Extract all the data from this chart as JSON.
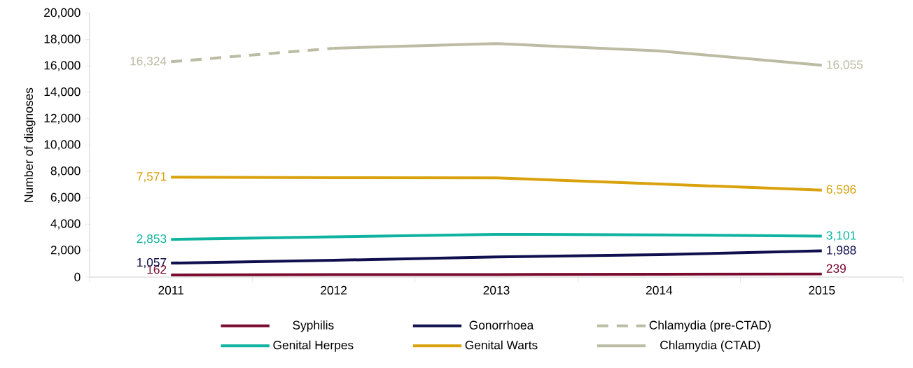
{
  "chart_data": {
    "type": "line",
    "ylabel": "Number of diagnoses",
    "categories": [
      "2011",
      "2012",
      "2013",
      "2014",
      "2015"
    ],
    "ylim": [
      0,
      20000
    ],
    "yticks": [
      {
        "value": 0,
        "label": "0"
      },
      {
        "value": 2000,
        "label": "2,000"
      },
      {
        "value": 4000,
        "label": "4,000"
      },
      {
        "value": 6000,
        "label": "6,000"
      },
      {
        "value": 8000,
        "label": "8,000"
      },
      {
        "value": 10000,
        "label": "10,000"
      },
      {
        "value": 12000,
        "label": "12,000"
      },
      {
        "value": 14000,
        "label": "14,000"
      },
      {
        "value": 16000,
        "label": "16,000"
      },
      {
        "value": 18000,
        "label": "18,000"
      },
      {
        "value": 20000,
        "label": "20,000"
      }
    ],
    "grid": false,
    "legend": "bottom",
    "marker": "none",
    "series": [
      {
        "name": "Syphilis",
        "color": "#7a0a2e",
        "line_style": "solid",
        "values": [
          162,
          180,
          190,
          210,
          239
        ],
        "value_labels": [
          "162",
          null,
          null,
          null,
          "239"
        ]
      },
      {
        "name": "Gonorrhoea",
        "color": "#10104f",
        "line_style": "solid",
        "values": [
          1057,
          1270,
          1530,
          1700,
          1988
        ],
        "value_labels": [
          "1,057",
          null,
          null,
          null,
          "1,988"
        ]
      },
      {
        "name": "Chlamydia (pre-CTAD)",
        "color": "#bcbca4",
        "line_style": "dashed",
        "values": [
          16324,
          17350,
          null,
          null,
          null
        ],
        "value_labels": [
          "16,324",
          null,
          null,
          null,
          null
        ]
      },
      {
        "name": "Genital Herpes",
        "color": "#0fb3a0",
        "line_style": "solid",
        "values": [
          2853,
          3050,
          3240,
          3200,
          3101
        ],
        "value_labels": [
          "2,853",
          null,
          null,
          null,
          "3,101"
        ]
      },
      {
        "name": "Genital Warts",
        "color": "#d9a20c",
        "line_style": "solid",
        "values": [
          7571,
          7530,
          7520,
          7050,
          6596
        ],
        "value_labels": [
          "7,571",
          null,
          null,
          null,
          "6,596"
        ]
      },
      {
        "name": "Chlamydia (CTAD)",
        "color": "#bcbca4",
        "line_style": "solid",
        "values": [
          null,
          17350,
          17700,
          17150,
          16055
        ],
        "value_labels": [
          null,
          null,
          null,
          null,
          "16,055"
        ]
      }
    ]
  }
}
